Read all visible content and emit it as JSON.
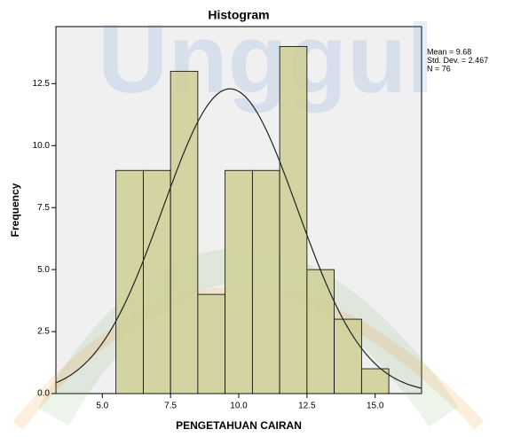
{
  "chart_data": {
    "type": "histogram",
    "title": "Histogram",
    "xlabel": "PENGETAHUAN CAIRAN",
    "ylabel": "Frequency",
    "bins": [
      5.5,
      6.5,
      7.5,
      8.5,
      9.5,
      10.5,
      11.5,
      12.5,
      13.5,
      14.5,
      15.5
    ],
    "counts": [
      9,
      9,
      13,
      4,
      9,
      9,
      14,
      5,
      3,
      1
    ],
    "color": "#cfcf95",
    "xlim": [
      3.3,
      16.7
    ],
    "ylim": [
      0,
      14.8
    ],
    "xticks": [
      {
        "value": 5,
        "label": "5.0"
      },
      7.5,
      {
        "value": 10,
        "label": "10.0"
      },
      12.5,
      {
        "value": 15,
        "label": "15.0"
      }
    ],
    "yticks": [
      {
        "value": 0,
        "label": "0.0"
      },
      2.5,
      {
        "value": 5,
        "label": "5.0"
      },
      7.5,
      {
        "value": 10,
        "label": "10.0"
      },
      12.5
    ],
    "annotations": [
      "Mean = 9.68",
      "Std. Dev. = 2.467",
      "N = 76"
    ],
    "normal_curve": {
      "mean": 9.68,
      "sd": 2.467,
      "n": 76
    },
    "watermark": "Unggul"
  }
}
